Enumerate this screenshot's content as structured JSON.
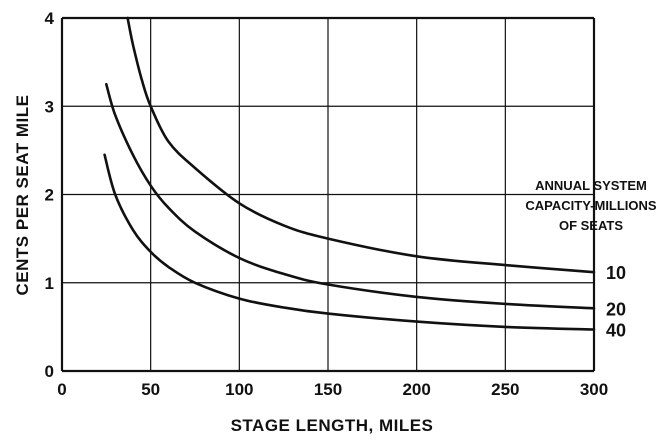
{
  "chart_data": {
    "type": "line",
    "title": "",
    "xlabel": "STAGE LENGTH, MILES",
    "ylabel": "CENTS PER SEAT MILE",
    "xlim": [
      0,
      300
    ],
    "ylim": [
      0,
      4
    ],
    "xticks": [
      "0",
      "50",
      "100",
      "150",
      "200",
      "250",
      "300"
    ],
    "yticks": [
      "0",
      "1",
      "2",
      "3",
      "4"
    ],
    "grid": true,
    "legend": {
      "title_lines": [
        "ANNUAL SYSTEM",
        "CAPACITY-MILLIONS",
        "OF SEATS"
      ],
      "placement": "right"
    },
    "series": [
      {
        "name": "10",
        "x": [
          37,
          40,
          45,
          50,
          60,
          75,
          100,
          125,
          150,
          200,
          250,
          300
        ],
        "y": [
          4.0,
          3.7,
          3.3,
          3.0,
          2.6,
          2.3,
          1.9,
          1.65,
          1.5,
          1.3,
          1.2,
          1.12
        ]
      },
      {
        "name": "20",
        "x": [
          25,
          30,
          40,
          50,
          60,
          75,
          100,
          125,
          150,
          200,
          250,
          300
        ],
        "y": [
          3.25,
          2.9,
          2.45,
          2.1,
          1.85,
          1.58,
          1.28,
          1.1,
          0.98,
          0.84,
          0.76,
          0.71
        ]
      },
      {
        "name": "40",
        "x": [
          24,
          30,
          40,
          50,
          60,
          75,
          100,
          125,
          150,
          200,
          250,
          300
        ],
        "y": [
          2.45,
          2.0,
          1.6,
          1.35,
          1.18,
          1.0,
          0.82,
          0.72,
          0.65,
          0.56,
          0.5,
          0.47
        ]
      }
    ]
  }
}
